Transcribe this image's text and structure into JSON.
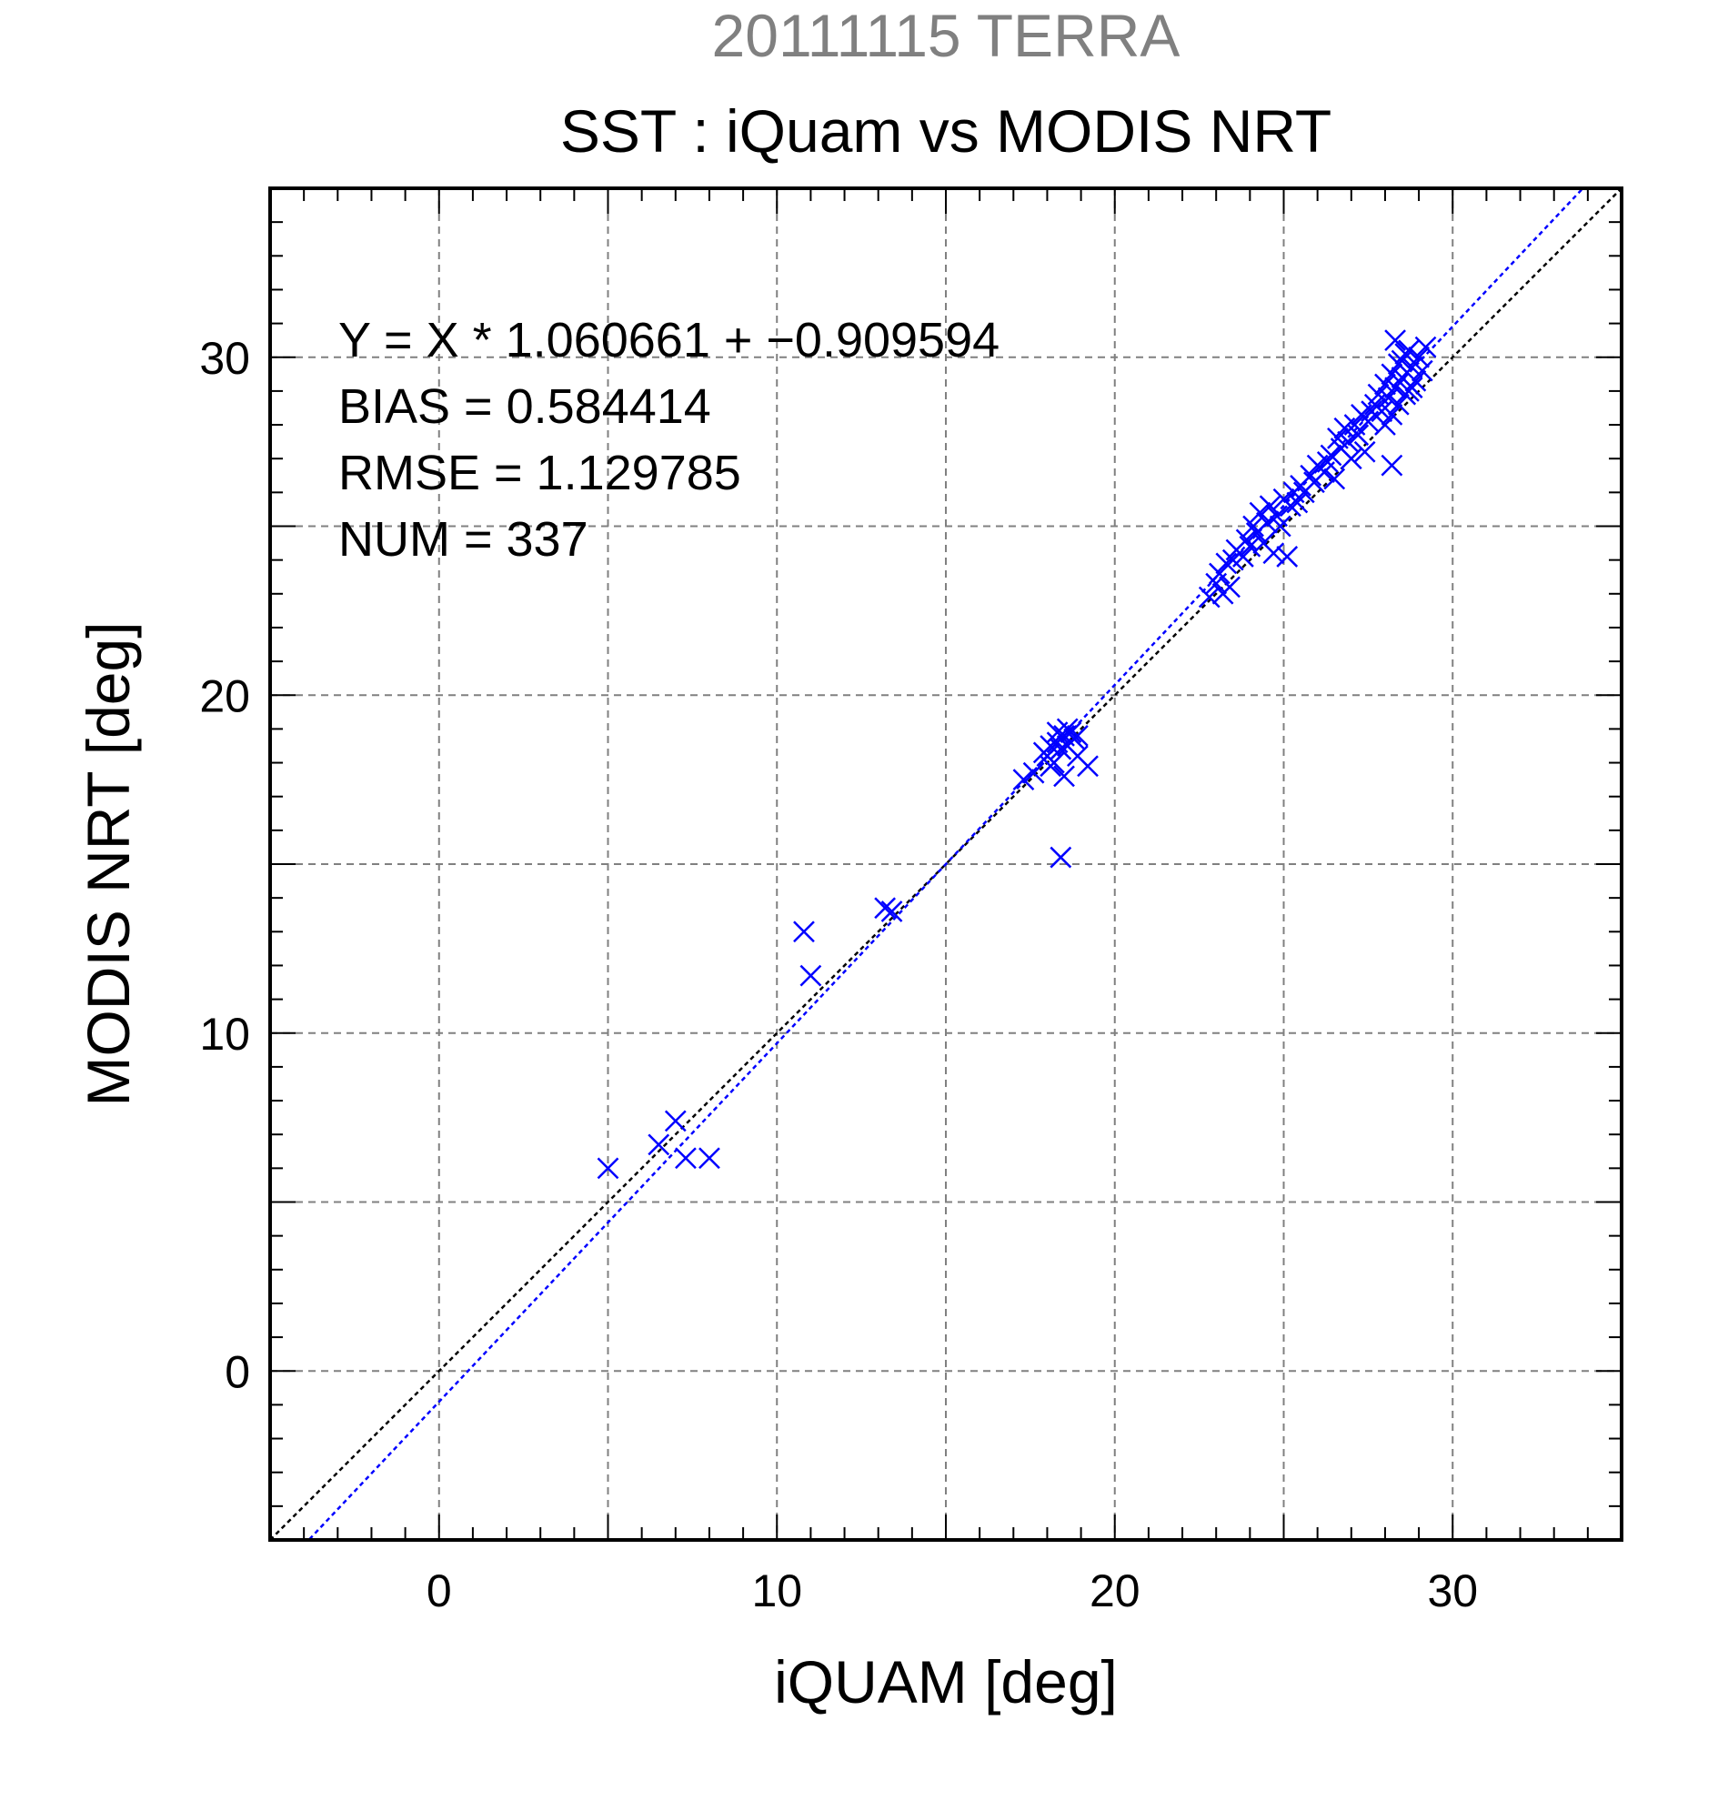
{
  "chart_data": {
    "type": "scatter",
    "title": "20111115 TERRA",
    "subtitle": "SST : iQuam vs MODIS NRT",
    "xlabel": "iQUAM [deg]",
    "ylabel": "MODIS NRT [deg]",
    "xlim": [
      -5,
      35
    ],
    "ylim": [
      -5,
      35
    ],
    "xticks": [
      0,
      10,
      20,
      30
    ],
    "yticks": [
      0,
      10,
      20,
      30
    ],
    "grid": true,
    "annotations": [
      "Y = X * 1.060661 + −0.909594",
      "BIAS = 0.584414",
      "RMSE = 1.129785",
      "NUM = 337"
    ],
    "fit": {
      "slope": 1.060661,
      "intercept": -0.909594
    },
    "colors": {
      "points": "#0000ff",
      "fit_line": "#0000ff",
      "identity_line": "#000000",
      "title": "#808080",
      "grid": "#808080"
    },
    "series": [
      {
        "values": [
          [
            5.0,
            6.0
          ],
          [
            6.5,
            6.7
          ],
          [
            7.0,
            7.4
          ],
          [
            7.3,
            6.3
          ],
          [
            8.0,
            6.3
          ],
          [
            10.8,
            13.0
          ],
          [
            11.0,
            11.7
          ],
          [
            13.2,
            13.7
          ],
          [
            13.4,
            13.6
          ],
          [
            17.3,
            17.5
          ],
          [
            17.6,
            17.7
          ],
          [
            17.9,
            18.3
          ],
          [
            18.0,
            18.2
          ],
          [
            18.1,
            18.5
          ],
          [
            18.2,
            18.0
          ],
          [
            18.3,
            18.6
          ],
          [
            18.4,
            18.4
          ],
          [
            18.5,
            18.8
          ],
          [
            18.6,
            18.5
          ],
          [
            18.7,
            18.9
          ],
          [
            18.8,
            18.7
          ],
          [
            18.9,
            18.8
          ],
          [
            18.5,
            17.6
          ],
          [
            18.9,
            18.2
          ],
          [
            19.2,
            17.9
          ],
          [
            18.3,
            18.9
          ],
          [
            18.6,
            19.0
          ],
          [
            18.1,
            17.9
          ],
          [
            18.4,
            15.2
          ],
          [
            22.8,
            22.9
          ],
          [
            23.0,
            23.3
          ],
          [
            23.1,
            23.6
          ],
          [
            23.2,
            23.0
          ],
          [
            23.3,
            23.9
          ],
          [
            23.4,
            23.2
          ],
          [
            23.5,
            24.0
          ],
          [
            23.6,
            24.3
          ],
          [
            23.8,
            24.1
          ],
          [
            23.9,
            24.6
          ],
          [
            24.0,
            24.4
          ],
          [
            24.1,
            25.0
          ],
          [
            24.2,
            24.8
          ],
          [
            24.3,
            25.4
          ],
          [
            24.4,
            24.5
          ],
          [
            24.5,
            25.1
          ],
          [
            24.6,
            25.6
          ],
          [
            24.7,
            24.2
          ],
          [
            24.8,
            25.3
          ],
          [
            24.9,
            25.0
          ],
          [
            25.0,
            25.8
          ],
          [
            25.1,
            24.1
          ],
          [
            25.2,
            25.6
          ],
          [
            25.3,
            26.0
          ],
          [
            25.4,
            25.7
          ],
          [
            25.5,
            26.2
          ],
          [
            25.6,
            26.0
          ],
          [
            25.8,
            26.5
          ],
          [
            25.9,
            26.3
          ],
          [
            26.0,
            26.8
          ],
          [
            26.2,
            26.6
          ],
          [
            26.3,
            26.9
          ],
          [
            26.4,
            27.1
          ],
          [
            26.5,
            26.4
          ],
          [
            26.6,
            27.6
          ],
          [
            26.7,
            27.3
          ],
          [
            26.8,
            27.9
          ],
          [
            26.9,
            27.5
          ],
          [
            27.0,
            27.0
          ],
          [
            27.1,
            28.0
          ],
          [
            27.2,
            27.7
          ],
          [
            27.3,
            28.3
          ],
          [
            27.4,
            27.2
          ],
          [
            27.5,
            28.1
          ],
          [
            27.7,
            28.6
          ],
          [
            27.8,
            28.9
          ],
          [
            27.9,
            28.4
          ],
          [
            28.0,
            29.2
          ],
          [
            28.1,
            28.8
          ],
          [
            28.2,
            29.5
          ],
          [
            28.3,
            29.1
          ],
          [
            28.4,
            29.8
          ],
          [
            28.5,
            29.4
          ],
          [
            28.6,
            30.1
          ],
          [
            28.7,
            29.0
          ],
          [
            28.8,
            29.7
          ],
          [
            28.9,
            29.3
          ],
          [
            29.0,
            30.0
          ],
          [
            29.1,
            29.6
          ],
          [
            28.2,
            28.3
          ],
          [
            28.4,
            28.6
          ],
          [
            28.6,
            28.9
          ],
          [
            28.8,
            29.1
          ],
          [
            29.2,
            30.3
          ],
          [
            28.3,
            30.5
          ],
          [
            28.2,
            26.8
          ],
          [
            28.5,
            29.9
          ],
          [
            28.7,
            30.2
          ],
          [
            27.6,
            28.4
          ],
          [
            28.0,
            28.0
          ]
        ]
      }
    ]
  }
}
